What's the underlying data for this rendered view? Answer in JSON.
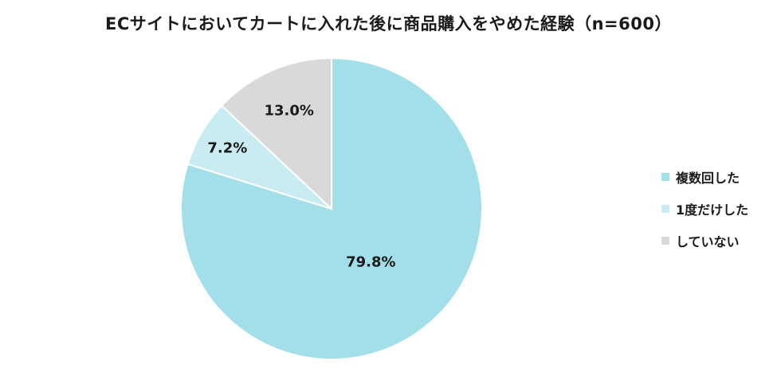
{
  "chart_data": {
    "type": "pie",
    "title": "ECサイトにおいてカートに入れた後に商品購入をやめた経験（n=600）",
    "slices": [
      {
        "label": "複数回した",
        "value": 79.8,
        "value_label": "79.8%",
        "color": "#a2dfe9"
      },
      {
        "label": "1度だけした",
        "value": 7.2,
        "value_label": "7.2%",
        "color": "#c8ecf2"
      },
      {
        "label": "していない",
        "value": 13.0,
        "value_label": "13.0%",
        "color": "#d9d9d9"
      }
    ],
    "start": "12 o'clock",
    "direction": "clockwise",
    "legend_position": "right",
    "data_labels": true
  }
}
